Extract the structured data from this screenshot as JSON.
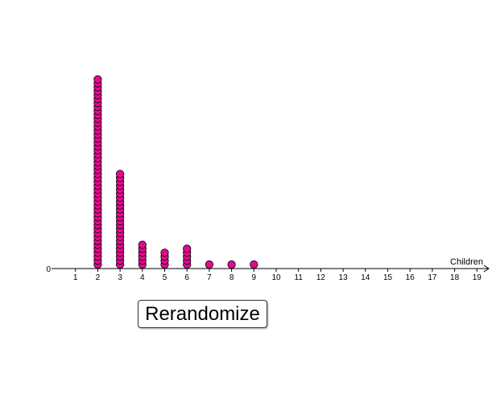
{
  "chart_data": {
    "type": "scatter",
    "style": "dot-plot",
    "xlabel": "Children",
    "ylabel": "",
    "x_ticks": [
      "1",
      "2",
      "3",
      "4",
      "5",
      "6",
      "7",
      "8",
      "9",
      "10",
      "11",
      "12",
      "13",
      "14",
      "15",
      "16",
      "17",
      "18",
      "19"
    ],
    "y_origin_label": "0",
    "xlim": [
      0,
      19.5
    ],
    "grid": false,
    "dot_color": "#e6098f",
    "dot_stroke": "#000000",
    "counts": [
      {
        "x": 2,
        "count": 48
      },
      {
        "x": 3,
        "count": 24
      },
      {
        "x": 4,
        "count": 6
      },
      {
        "x": 5,
        "count": 4
      },
      {
        "x": 6,
        "count": 5
      },
      {
        "x": 7,
        "count": 1
      },
      {
        "x": 8,
        "count": 1
      },
      {
        "x": 9,
        "count": 1
      }
    ]
  },
  "controls": {
    "rerandomize_label": "Rerandomize"
  }
}
